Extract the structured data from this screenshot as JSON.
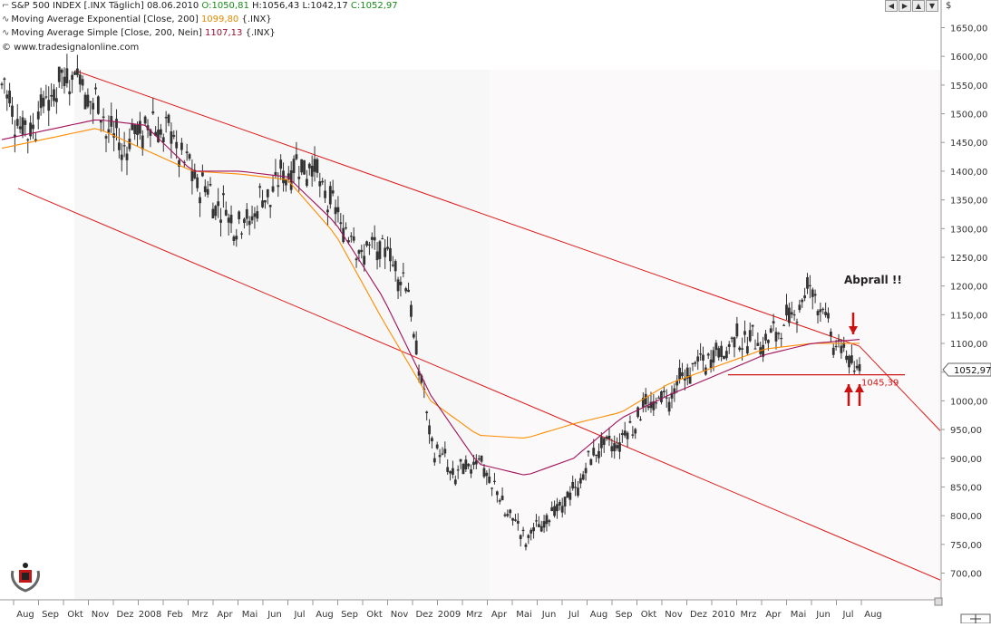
{
  "header": {
    "line1": {
      "instrument": "S&P 500 INDEX [.INX  Täglich]",
      "date": "08.06.2010",
      "open": "O:1050,81",
      "high": "H:1056,43",
      "low": "L:1042,17",
      "close": "C:1052,97"
    },
    "line2": {
      "label": "Moving Average Exponential [Close, 200]",
      "value": "1099,80",
      "suffix": "{.INX}"
    },
    "line3": {
      "label": "Moving Average Simple [Close, 200, Nein]",
      "value": "1107,13",
      "suffix": "{.INX}"
    },
    "line4": "© www.tradesignalonline.com"
  },
  "annotation": "Abprall !!",
  "price_label": "1052,97",
  "level_label": "1045,39",
  "currency_symbol": "$",
  "colors": {
    "candles": "#333333",
    "ema": "#ff8c00",
    "sma": "#a0105a",
    "channel": "#e01818",
    "support": "#d01818",
    "arrow": "#cc1111",
    "grid_bg": "#f7f7f7"
  },
  "chart_data": {
    "type": "line",
    "y_axis": {
      "range": [
        660,
        1680
      ],
      "ticks": [
        "700,00",
        "750,00",
        "800,00",
        "850,00",
        "900,00",
        "950,00",
        "1000,00",
        "1050,00",
        "1100,00",
        "1150,00",
        "1200,00",
        "1250,00",
        "1300,00",
        "1350,00",
        "1400,00",
        "1450,00",
        "1500,00",
        "1550,00",
        "1600,00",
        "1650,00"
      ]
    },
    "x_axis": {
      "ticks": [
        "Aug",
        "Sep",
        "Okt",
        "Nov",
        "Dez",
        "2008",
        "Feb",
        "Mrz",
        "Apr",
        "Mai",
        "Jun",
        "Jul",
        "Aug",
        "Sep",
        "Okt",
        "Nov",
        "Dez",
        "2009",
        "Mrz",
        "Apr",
        "Mai",
        "Jun",
        "Jul",
        "Aug",
        "Sep",
        "Okt",
        "Nov",
        "Dez",
        "2010",
        "Mrz",
        "Apr",
        "Mai",
        "Jun",
        "Jul",
        "Aug"
      ]
    },
    "series": [
      {
        "kind": "price",
        "x": [
          0,
          1,
          2,
          3,
          4,
          5,
          6,
          7,
          8,
          9,
          10,
          11,
          12,
          13,
          14,
          15,
          16,
          17,
          18,
          19,
          20,
          21,
          22,
          23,
          24,
          25,
          26,
          27,
          28,
          29,
          30,
          31,
          32,
          33,
          34,
          35,
          36
        ],
        "values": [
          1550,
          1460,
          1530,
          1575,
          1510,
          1440,
          1480,
          1470,
          1395,
          1345,
          1300,
          1350,
          1400,
          1410,
          1330,
          1260,
          1270,
          1200,
          930,
          870,
          900,
          820,
          760,
          800,
          840,
          920,
          930,
          990,
          1010,
          1060,
          1080,
          1110,
          1100,
          1140,
          1200,
          1100,
          1052
        ]
      },
      {
        "kind": "ema",
        "x": [
          0,
          4,
          8,
          10,
          12,
          14,
          16,
          18,
          20,
          22,
          24,
          26,
          28,
          30,
          32,
          34,
          36
        ],
        "values": [
          1440,
          1475,
          1400,
          1395,
          1385,
          1290,
          1140,
          1000,
          940,
          935,
          960,
          980,
          1030,
          1060,
          1090,
          1100,
          1100
        ]
      },
      {
        "kind": "sma",
        "x": [
          0,
          4,
          6,
          8,
          10,
          12,
          14,
          16,
          18,
          20,
          22,
          24,
          26,
          28,
          30,
          32,
          34,
          36
        ],
        "values": [
          1455,
          1490,
          1480,
          1400,
          1400,
          1390,
          1310,
          1180,
          1010,
          890,
          870,
          900,
          970,
          1010,
          1045,
          1080,
          1100,
          1107
        ]
      }
    ],
    "channel_lines": [
      {
        "name": "upper",
        "from": [
          "Aug 2007",
          1575
        ],
        "to": [
          "Jun 2010",
          1095
        ]
      },
      {
        "name": "upper-ext",
        "from": [
          "Jun 2010",
          1095
        ],
        "to": [
          "Aug 2010",
          948
        ]
      },
      {
        "name": "lower",
        "from": [
          "Aug 2007",
          1370
        ],
        "to": [
          "Aug 2010",
          688
        ]
      }
    ],
    "support_level": 1045.39,
    "last_close": 1052.97
  }
}
